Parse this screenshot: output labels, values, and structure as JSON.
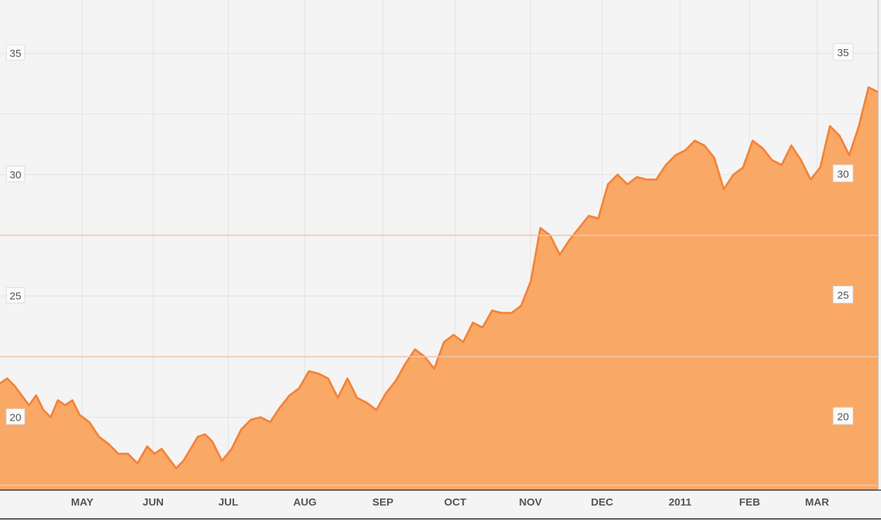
{
  "chart_data": {
    "type": "area",
    "title": "",
    "xlabel": "",
    "ylabel": "",
    "x_tick_labels": [
      "MAY",
      "JUN",
      "JUL",
      "AUG",
      "SEP",
      "OCT",
      "NOV",
      "DEC",
      "2011",
      "FEB",
      "MAR"
    ],
    "y_ticks": [
      20,
      25,
      30,
      35
    ],
    "ylim": [
      17,
      37.2
    ],
    "xlim": [
      "2010-04-01",
      "2011-03-31"
    ],
    "grid": true,
    "colors": {
      "line": "#f4843a",
      "fill": "#f9a866",
      "grid": "#e2e2e2",
      "band": "#f6c6ad",
      "background": "#f4f4f4"
    },
    "series": [
      {
        "x": [
          "2010-04-01",
          "2010-04-04",
          "2010-04-07",
          "2010-04-10",
          "2010-04-13",
          "2010-04-16",
          "2010-04-19",
          "2010-04-22",
          "2010-04-25",
          "2010-04-28",
          "2010-05-01",
          "2010-05-04",
          "2010-05-08",
          "2010-05-12",
          "2010-05-16",
          "2010-05-20",
          "2010-05-24",
          "2010-05-28",
          "2010-06-01",
          "2010-06-04",
          "2010-06-07",
          "2010-06-10",
          "2010-06-13",
          "2010-06-16",
          "2010-06-19",
          "2010-06-22",
          "2010-06-25",
          "2010-06-28",
          "2010-07-02",
          "2010-07-06",
          "2010-07-10",
          "2010-07-14",
          "2010-07-18",
          "2010-07-22",
          "2010-07-26",
          "2010-07-30",
          "2010-08-03",
          "2010-08-07",
          "2010-08-11",
          "2010-08-15",
          "2010-08-19",
          "2010-08-23",
          "2010-08-27",
          "2010-08-31",
          "2010-09-04",
          "2010-09-08",
          "2010-09-12",
          "2010-09-16",
          "2010-09-20",
          "2010-09-24",
          "2010-09-28",
          "2010-10-02",
          "2010-10-06",
          "2010-10-10",
          "2010-10-14",
          "2010-10-18",
          "2010-10-22",
          "2010-10-26",
          "2010-10-30",
          "2010-11-03",
          "2010-11-07",
          "2010-11-11",
          "2010-11-15",
          "2010-11-19",
          "2010-11-23",
          "2010-11-27",
          "2010-12-01",
          "2010-12-05",
          "2010-12-09",
          "2010-12-13",
          "2010-12-17",
          "2010-12-21",
          "2010-12-25",
          "2010-12-29",
          "2011-01-02",
          "2011-01-06",
          "2011-01-10",
          "2011-01-14",
          "2011-01-18",
          "2011-01-22",
          "2011-01-26",
          "2011-01-30",
          "2011-02-03",
          "2011-02-07",
          "2011-02-11",
          "2011-02-15",
          "2011-02-19",
          "2011-02-23",
          "2011-02-27",
          "2011-03-03",
          "2011-03-07",
          "2011-03-11",
          "2011-03-15",
          "2011-03-19",
          "2011-03-23",
          "2011-03-27",
          "2011-03-31"
        ],
        "values": [
          21.4,
          21.6,
          21.3,
          20.9,
          20.5,
          20.9,
          20.3,
          20.0,
          20.7,
          20.5,
          20.7,
          20.1,
          19.8,
          19.2,
          18.9,
          18.5,
          18.5,
          18.1,
          18.8,
          18.5,
          18.7,
          18.3,
          17.9,
          18.2,
          18.7,
          19.2,
          19.3,
          19.0,
          18.2,
          18.7,
          19.5,
          19.9,
          20.0,
          19.8,
          20.4,
          20.9,
          21.2,
          21.9,
          21.8,
          21.6,
          20.8,
          21.6,
          20.8,
          20.6,
          20.3,
          21.0,
          21.5,
          22.2,
          22.8,
          22.5,
          22.0,
          23.1,
          23.4,
          23.1,
          23.9,
          23.7,
          24.4,
          24.3,
          24.3,
          24.6,
          25.6,
          27.8,
          27.5,
          26.7,
          27.3,
          27.8,
          28.3,
          28.2,
          29.6,
          30.0,
          29.6,
          29.9,
          29.8,
          29.8,
          30.4,
          30.8,
          31.0,
          31.4,
          31.2,
          30.7,
          29.4,
          30.0,
          30.3,
          31.4,
          31.1,
          30.6,
          30.4,
          31.2,
          30.6,
          29.8,
          30.3,
          32.0,
          31.6,
          30.8,
          32.0,
          33.6,
          33.4
        ]
      }
    ]
  }
}
